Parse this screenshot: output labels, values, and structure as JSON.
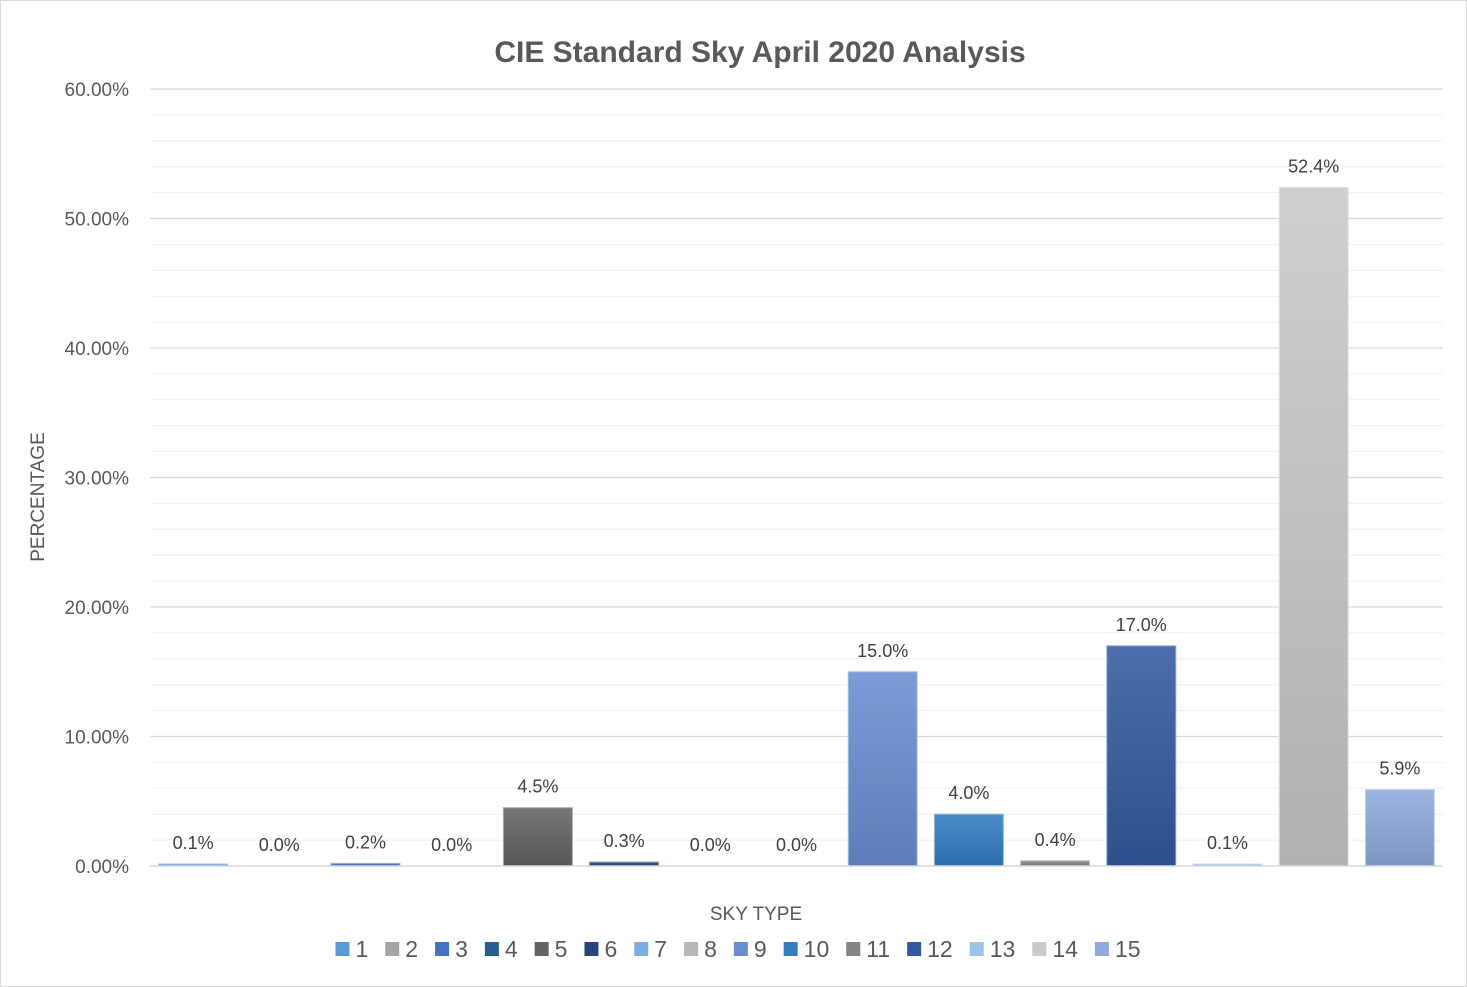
{
  "chart_data": {
    "type": "bar",
    "title": "CIE Standard Sky April 2020 Analysis",
    "xlabel": "SKY TYPE",
    "ylabel": "PERCENTAGE",
    "ylim": [
      0,
      60
    ],
    "y_ticks": [
      0,
      10,
      20,
      30,
      40,
      50,
      60
    ],
    "y_tick_labels": [
      "0.00%",
      "10.00%",
      "20.00%",
      "30.00%",
      "40.00%",
      "50.00%",
      "60.00%"
    ],
    "grid": true,
    "legend_position": "bottom",
    "categories": [
      "1",
      "2",
      "3",
      "4",
      "5",
      "6",
      "7",
      "8",
      "9",
      "10",
      "11",
      "12",
      "13",
      "14",
      "15"
    ],
    "values": [
      0.1,
      0.0,
      0.2,
      0.0,
      4.5,
      0.3,
      0.0,
      0.0,
      15.0,
      4.0,
      0.4,
      17.0,
      0.1,
      52.4,
      5.9
    ],
    "data_labels": [
      "0.1%",
      "0.0%",
      "0.2%",
      "0.0%",
      "4.5%",
      "0.3%",
      "0.0%",
      "0.0%",
      "15.0%",
      "4.0%",
      "0.4%",
      "17.0%",
      "0.1%",
      "52.4%",
      "5.9%"
    ],
    "colors": [
      "#5b9bd5",
      "#a5a5a5",
      "#4472c4",
      "#255e91",
      "#636363",
      "#264478",
      "#7cafdd",
      "#b7b7b7",
      "#698ed0",
      "#327dc2",
      "#848484",
      "#335aa1",
      "#9dc3e6",
      "#c9c9c9",
      "#8faadc"
    ],
    "legend": [
      {
        "label": "1",
        "color": "#5b9bd5"
      },
      {
        "label": "2",
        "color": "#a5a5a5"
      },
      {
        "label": "3",
        "color": "#4472c4"
      },
      {
        "label": "4",
        "color": "#255e91"
      },
      {
        "label": "5",
        "color": "#636363"
      },
      {
        "label": "6",
        "color": "#264478"
      },
      {
        "label": "7",
        "color": "#7cafdd"
      },
      {
        "label": "8",
        "color": "#b7b7b7"
      },
      {
        "label": "9",
        "color": "#698ed0"
      },
      {
        "label": "10",
        "color": "#327dc2"
      },
      {
        "label": "11",
        "color": "#848484"
      },
      {
        "label": "12",
        "color": "#335aa1"
      },
      {
        "label": "13",
        "color": "#9dc3e6"
      },
      {
        "label": "14",
        "color": "#c9c9c9"
      },
      {
        "label": "15",
        "color": "#8faadc"
      }
    ]
  }
}
